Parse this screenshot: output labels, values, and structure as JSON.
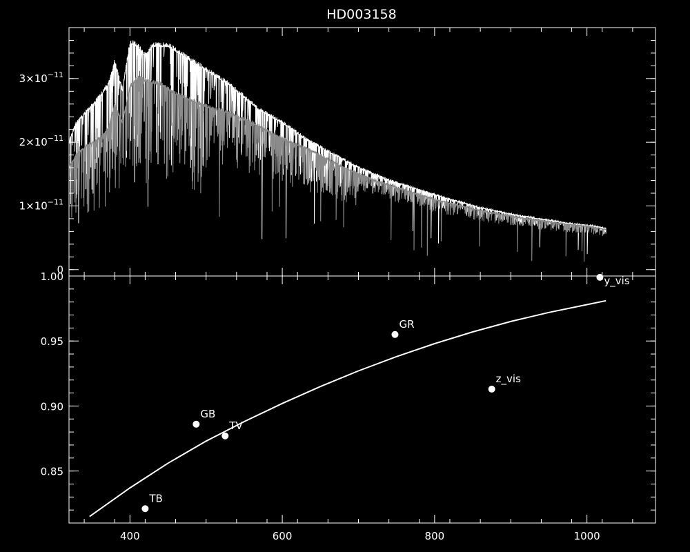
{
  "chart_data": [
    {
      "type": "line",
      "panel": "top",
      "title": "HD003158",
      "xlim": [
        320,
        1090
      ],
      "ylim": [
        -1e-12,
        3.8e-11
      ],
      "yticks": [
        {
          "value": 0,
          "label": "0"
        },
        {
          "value": 1e-11,
          "label": "1×10",
          "exp": "−11"
        },
        {
          "value": 2e-11,
          "label": "2×10",
          "exp": "−11"
        },
        {
          "value": 3e-11,
          "label": "3×10",
          "exp": "−11"
        }
      ],
      "series": [
        {
          "color": "#ffffff",
          "points": [
            [
              320,
              2e-11
            ],
            [
              330,
              2.3e-11
            ],
            [
              345,
              2.5e-11
            ],
            [
              360,
              2.7e-11
            ],
            [
              372,
              2.9e-11
            ],
            [
              380,
              3.25e-11
            ],
            [
              390,
              2.8e-11
            ],
            [
              400,
              3.55e-11
            ],
            [
              410,
              3.5e-11
            ],
            [
              420,
              3.35e-11
            ],
            [
              430,
              3.5e-11
            ],
            [
              450,
              3.5e-11
            ],
            [
              470,
              3.35e-11
            ],
            [
              490,
              3.2e-11
            ],
            [
              510,
              3.05e-11
            ],
            [
              530,
              2.9e-11
            ],
            [
              550,
              2.7e-11
            ],
            [
              570,
              2.5e-11
            ],
            [
              600,
              2.3e-11
            ],
            [
              630,
              2.05e-11
            ],
            [
              660,
              1.85e-11
            ],
            [
              700,
              1.6e-11
            ],
            [
              740,
              1.4e-11
            ],
            [
              780,
              1.25e-11
            ],
            [
              820,
              1.1e-11
            ],
            [
              860,
              9.7e-12
            ],
            [
              900,
              8.7e-12
            ],
            [
              940,
              7.9e-12
            ],
            [
              980,
              7.2e-12
            ],
            [
              1010,
              6.8e-12
            ],
            [
              1025,
              6.5e-12
            ]
          ]
        },
        {
          "color": "#8a8a8a",
          "points": [
            [
              320,
              1.6e-11
            ],
            [
              330,
              1.8e-11
            ],
            [
              345,
              1.95e-11
            ],
            [
              360,
              2.05e-11
            ],
            [
              372,
              2.2e-11
            ],
            [
              380,
              2.6e-11
            ],
            [
              390,
              2.3e-11
            ],
            [
              400,
              2.85e-11
            ],
            [
              410,
              3e-11
            ],
            [
              420,
              2.95e-11
            ],
            [
              440,
              2.9e-11
            ],
            [
              460,
              2.75e-11
            ],
            [
              480,
              2.65e-11
            ],
            [
              500,
              2.55e-11
            ],
            [
              530,
              2.45e-11
            ],
            [
              560,
              2.3e-11
            ],
            [
              600,
              2.05e-11
            ],
            [
              640,
              1.85e-11
            ],
            [
              680,
              1.6e-11
            ],
            [
              720,
              1.4e-11
            ],
            [
              760,
              1.25e-11
            ],
            [
              800,
              1.1e-11
            ],
            [
              840,
              9.8e-12
            ],
            [
              880,
              8.8e-12
            ],
            [
              920,
              8e-12
            ],
            [
              960,
              7.3e-12
            ],
            [
              1000,
              6.8e-12
            ],
            [
              1025,
              6.3e-12
            ]
          ]
        }
      ]
    },
    {
      "type": "scatter",
      "panel": "bottom",
      "xlim": [
        320,
        1090
      ],
      "ylim": [
        0.81,
        1.0
      ],
      "xticks": [
        400,
        600,
        800,
        1000
      ],
      "yticks": [
        {
          "value": 0.85,
          "label": "0.85"
        },
        {
          "value": 0.9,
          "label": "0.90"
        },
        {
          "value": 0.95,
          "label": "0.95"
        },
        {
          "value": 1.0,
          "label": "1.00"
        }
      ],
      "points": [
        {
          "label": "TB",
          "x": 420,
          "y": 0.821
        },
        {
          "label": "GB",
          "x": 487,
          "y": 0.886
        },
        {
          "label": "TV",
          "x": 525,
          "y": 0.877
        },
        {
          "label": "GR",
          "x": 748,
          "y": 0.955
        },
        {
          "label": "z_vis",
          "x": 875,
          "y": 0.913
        },
        {
          "label": "y_vis",
          "x": 1017,
          "y": 0.999
        }
      ],
      "curve": {
        "color": "#ffffff",
        "points": [
          [
            347,
            0.815
          ],
          [
            400,
            0.837
          ],
          [
            450,
            0.856
          ],
          [
            500,
            0.873
          ],
          [
            550,
            0.888
          ],
          [
            600,
            0.902
          ],
          [
            650,
            0.915
          ],
          [
            700,
            0.927
          ],
          [
            750,
            0.938
          ],
          [
            800,
            0.948
          ],
          [
            850,
            0.957
          ],
          [
            900,
            0.965
          ],
          [
            950,
            0.972
          ],
          [
            1000,
            0.978
          ],
          [
            1025,
            0.981
          ]
        ]
      }
    }
  ]
}
